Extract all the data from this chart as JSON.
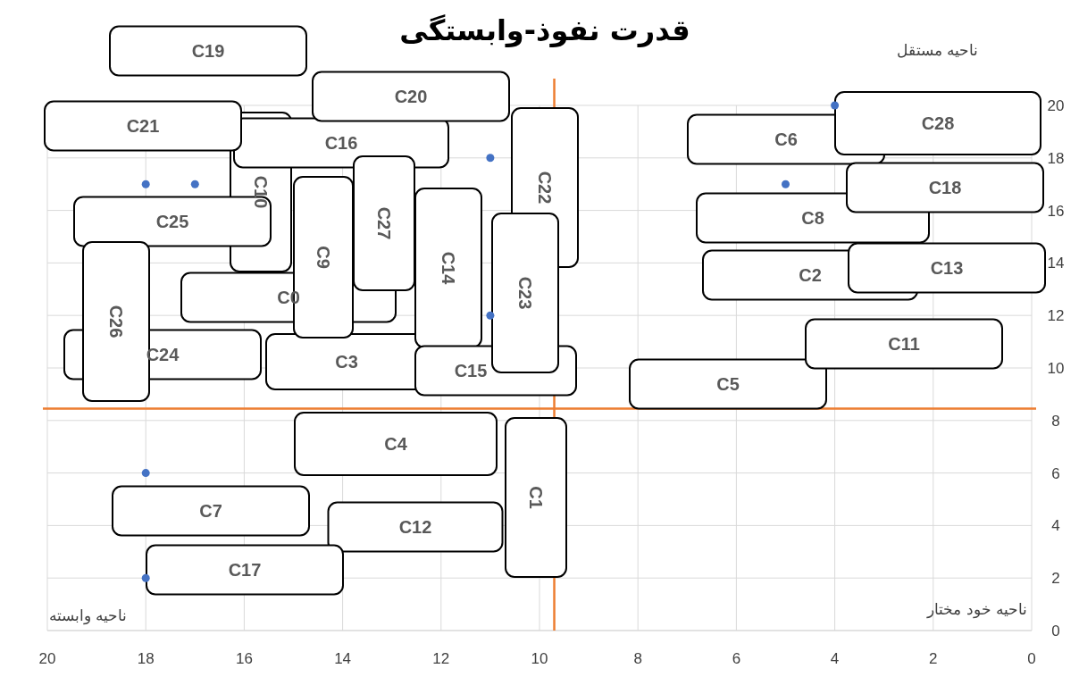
{
  "chart_data": {
    "type": "scatter",
    "title": "قدرت نفوذ-وابستگی",
    "xlim": [
      20,
      0
    ],
    "xticks": [
      20,
      18,
      16,
      14,
      12,
      10,
      8,
      6,
      4,
      2,
      0
    ],
    "ylim": [
      0,
      20
    ],
    "yticks": [
      0,
      2,
      4,
      6,
      8,
      10,
      12,
      14,
      16,
      18,
      20
    ],
    "grid": true,
    "marker": "circle",
    "series": [
      {
        "color": "#4472c4",
        "x": [
          4,
          5,
          18,
          17,
          11,
          11,
          18,
          18
        ],
        "values": [
          20,
          17,
          17,
          17,
          18,
          12,
          6,
          2
        ]
      }
    ],
    "ref_lines": [
      {
        "axis": "x",
        "value": 9.7,
        "color": "#ed7d31"
      },
      {
        "axis": "y",
        "value": 8.45,
        "color": "#ed7d31"
      }
    ],
    "annotations": [
      "C0",
      "C1",
      "C2",
      "C3",
      "C4",
      "C5",
      "C6",
      "C7",
      "C8",
      "C9",
      "C10",
      "C11",
      "C12",
      "C13",
      "C14",
      "C15",
      "C16",
      "C17",
      "C18",
      "C19",
      "C20",
      "C21",
      "C22",
      "C23",
      "C24",
      "C25",
      "C26",
      "C27",
      "C28",
      "ناحیه مستقل",
      "ناحیه خود مختار",
      "ناحیه وابسته"
    ]
  }
}
